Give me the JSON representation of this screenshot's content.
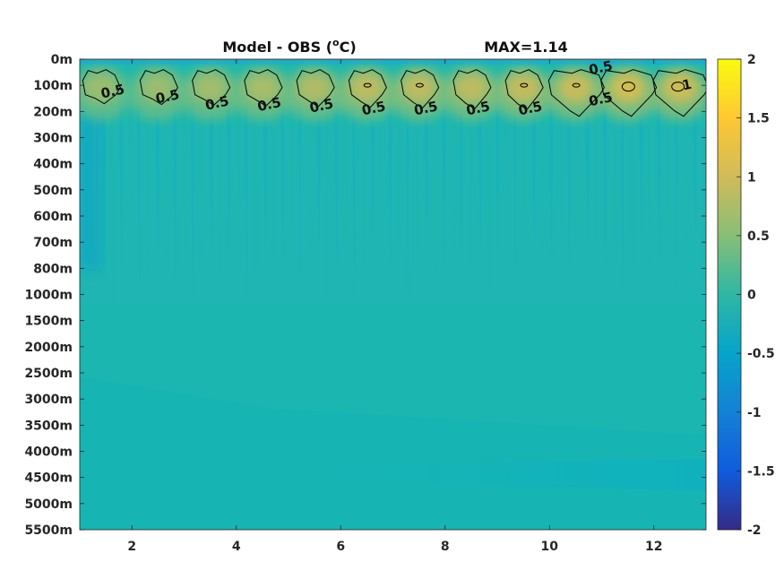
{
  "chart_data": {
    "type": "heatmap",
    "title": "Model - OBS (",
    "title_unit_sup": "o",
    "title_unit_tail": "C)",
    "max_label": "MAX=1.14",
    "xlabel": "",
    "ylabel": "",
    "x_ticks": [
      "2",
      "4",
      "6",
      "8",
      "10",
      "12"
    ],
    "x_tick_values": [
      2,
      4,
      6,
      8,
      10,
      12
    ],
    "xlim": [
      1,
      13
    ],
    "y_ticks": [
      "0m",
      "100m",
      "200m",
      "300m",
      "400m",
      "500m",
      "600m",
      "700m",
      "800m",
      "1000m",
      "1500m",
      "2000m",
      "2500m",
      "3000m",
      "3500m",
      "4000m",
      "4500m",
      "5000m",
      "5500m"
    ],
    "colorbar": {
      "ticks": [
        "2",
        "1.5",
        "1",
        "0.5",
        "0",
        "-0.5",
        "-1",
        "-1.5",
        "-2"
      ],
      "tick_values": [
        2,
        1.5,
        1,
        0.5,
        0,
        -0.5,
        -1,
        -1.5,
        -2
      ],
      "range": [
        -2,
        2
      ],
      "colormap": "parula"
    },
    "contour_level": 0.5,
    "contour_labels": [
      {
        "text": "0.5",
        "x": 1.65,
        "y_level": 1.4
      },
      {
        "text": "0.5",
        "x": 2.7,
        "y_level": 1.6
      },
      {
        "text": "0.5",
        "x": 3.65,
        "y_level": 1.85
      },
      {
        "text": "0.5",
        "x": 4.65,
        "y_level": 1.9
      },
      {
        "text": "0.5",
        "x": 5.65,
        "y_level": 1.95
      },
      {
        "text": "0.5",
        "x": 6.65,
        "y_level": 2.05
      },
      {
        "text": "0.5",
        "x": 7.65,
        "y_level": 2.05
      },
      {
        "text": "0.5",
        "x": 8.65,
        "y_level": 2.05
      },
      {
        "text": "0.5",
        "x": 9.65,
        "y_level": 2.05
      },
      {
        "text": "0.5",
        "x": 11.0,
        "y_level": 0.5
      },
      {
        "text": "0.5",
        "x": 11.0,
        "y_level": 1.7
      },
      {
        "text": "1",
        "x": 12.65,
        "y_level": 1.15
      }
    ],
    "blobs": [
      {
        "x": 1.4,
        "peak": 0.7
      },
      {
        "x": 2.5,
        "peak": 0.7
      },
      {
        "x": 3.5,
        "peak": 0.75
      },
      {
        "x": 4.5,
        "peak": 0.8
      },
      {
        "x": 5.5,
        "peak": 0.85
      },
      {
        "x": 6.5,
        "peak": 0.95
      },
      {
        "x": 7.5,
        "peak": 0.95
      },
      {
        "x": 8.5,
        "peak": 0.95
      },
      {
        "x": 9.5,
        "peak": 1.0
      },
      {
        "x": 10.5,
        "peak": 1.05
      },
      {
        "x": 11.5,
        "peak": 1.14
      },
      {
        "x": 12.5,
        "peak": 1.1
      }
    ],
    "legend": "none",
    "grid": false
  }
}
